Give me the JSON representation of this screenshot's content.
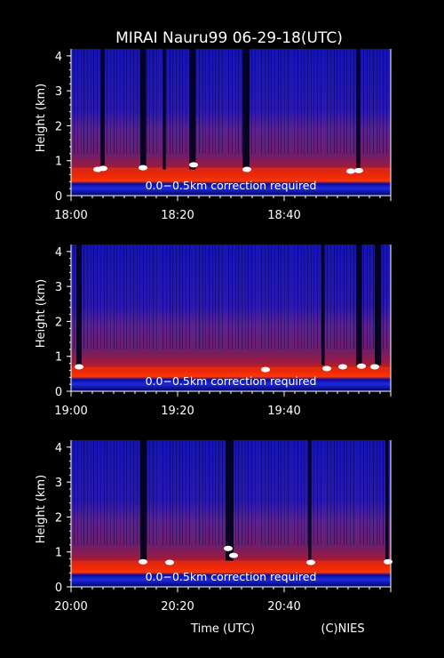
{
  "title": "MIRAI Nauru99 06-29-18(UTC)",
  "xlabel": "Time (UTC)",
  "credit": "(C)NIES",
  "colors": {
    "background": "#000000",
    "axis": "#ffffff",
    "text": "#ffffff",
    "low_signal": "#1010c8",
    "mid_signal": "#8a1a6e",
    "high_signal": "#ff3000",
    "saturated": "#ffffff"
  },
  "chart_data": [
    {
      "type": "heatmap",
      "ylabel": "Height (km)",
      "ylim": [
        0,
        4.2
      ],
      "yticks": [
        "0",
        "1",
        "2",
        "3",
        "4"
      ],
      "xlim_minutes": [
        0,
        60
      ],
      "xticks": [
        "18:00",
        "18:20",
        "18:40"
      ],
      "annotation": "0.0−0.5km correction required",
      "boundary_layer_top_km": 0.8,
      "cloud_gaps_minutes": [
        [
          5.5,
          6.3
        ],
        [
          13.0,
          14.1
        ],
        [
          17.2,
          17.8
        ],
        [
          22.2,
          23.4
        ],
        [
          32.2,
          33.5
        ],
        [
          53.5,
          54.3
        ]
      ],
      "bright_returns": [
        [
          5.0,
          0.75
        ],
        [
          6.0,
          0.78
        ],
        [
          13.5,
          0.8
        ],
        [
          23.0,
          0.88
        ],
        [
          33.0,
          0.75
        ],
        [
          52.5,
          0.7
        ],
        [
          54.0,
          0.72
        ]
      ]
    },
    {
      "type": "heatmap",
      "ylabel": "Height (km)",
      "ylim": [
        0,
        4.2
      ],
      "yticks": [
        "0",
        "1",
        "2",
        "3",
        "4"
      ],
      "xlim_minutes": [
        0,
        60
      ],
      "xticks": [
        "19:00",
        "19:20",
        "19:40"
      ],
      "annotation": "0.0−0.5km correction required",
      "boundary_layer_top_km": 0.7,
      "cloud_gaps_minutes": [
        [
          1.0,
          2.0
        ],
        [
          47.0,
          47.6
        ],
        [
          53.5,
          54.6
        ],
        [
          57.0,
          58.2
        ]
      ],
      "bright_returns": [
        [
          1.5,
          0.7
        ],
        [
          36.5,
          0.62
        ],
        [
          48.0,
          0.65
        ],
        [
          51.0,
          0.7
        ],
        [
          54.5,
          0.72
        ],
        [
          57.0,
          0.7
        ]
      ]
    },
    {
      "type": "heatmap",
      "ylabel": "Height (km)",
      "ylim": [
        0,
        4.2
      ],
      "yticks": [
        "0",
        "1",
        "2",
        "3",
        "4"
      ],
      "xlim_minutes": [
        0,
        60
      ],
      "xticks": [
        "20:00",
        "20:20",
        "20:40"
      ],
      "annotation": "0.0−0.5km correction required",
      "boundary_layer_top_km": 0.75,
      "cloud_gaps_minutes": [
        [
          13.0,
          14.2
        ],
        [
          29.0,
          30.5
        ],
        [
          44.5,
          45.1
        ],
        [
          59.0,
          59.6
        ]
      ],
      "bright_returns": [
        [
          13.5,
          0.72
        ],
        [
          18.5,
          0.7
        ],
        [
          29.5,
          1.1
        ],
        [
          30.5,
          0.9
        ],
        [
          45.0,
          0.7
        ],
        [
          59.5,
          0.72
        ]
      ]
    }
  ]
}
